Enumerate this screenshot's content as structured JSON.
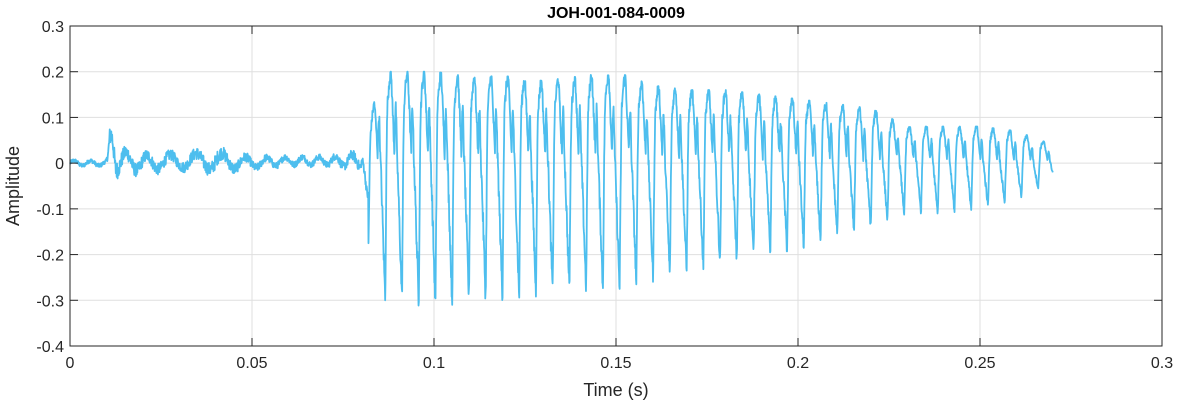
{
  "chart_data": {
    "type": "line",
    "title": "JOH-001-084-0009",
    "xlabel": "Time (s)",
    "ylabel": "Amplitude",
    "xlim": [
      0,
      0.3
    ],
    "ylim": [
      -0.4,
      0.3
    ],
    "xticks": [
      0,
      0.05,
      0.1,
      0.15,
      0.2,
      0.25,
      0.3
    ],
    "xtick_labels": [
      "0",
      "0.05",
      "0.1",
      "0.15",
      "0.2",
      "0.25",
      "0.3"
    ],
    "yticks": [
      -0.4,
      -0.3,
      -0.2,
      -0.1,
      0,
      0.1,
      0.2,
      0.3
    ],
    "ytick_labels": [
      "-0.4",
      "-0.3",
      "-0.2",
      "-0.1",
      "0",
      "0.1",
      "0.2",
      "0.3"
    ],
    "grid": true,
    "series": [
      {
        "color": "#4DBEEE",
        "x_start": 0,
        "x_end": 0.27,
        "voiced_onset": 0.08,
        "envelope": {
          "t": [
            0.082,
            0.086,
            0.09,
            0.1,
            0.11,
            0.12,
            0.13,
            0.14,
            0.15,
            0.16,
            0.17,
            0.18,
            0.19,
            0.2,
            0.21,
            0.22,
            0.23,
            0.24,
            0.25,
            0.26,
            0.27
          ],
          "max": [
            0.09,
            0.2,
            0.2,
            0.2,
            0.19,
            0.19,
            0.18,
            0.19,
            0.2,
            0.17,
            0.16,
            0.16,
            0.15,
            0.14,
            0.13,
            0.12,
            0.08,
            0.08,
            0.08,
            0.07,
            0.04
          ],
          "min": [
            -0.18,
            -0.3,
            -0.3,
            -0.32,
            -0.3,
            -0.3,
            -0.29,
            -0.28,
            -0.28,
            -0.26,
            -0.24,
            -0.22,
            -0.2,
            -0.19,
            -0.16,
            -0.14,
            -0.11,
            -0.11,
            -0.1,
            -0.08,
            -0.04
          ]
        },
        "pre_onset_noise": {
          "t": [
            0,
            0.01,
            0.011,
            0.015,
            0.02,
            0.03,
            0.04,
            0.05,
            0.06,
            0.07,
            0.078
          ],
          "max": [
            0.01,
            0.01,
            0.06,
            0.04,
            0.03,
            0.03,
            0.04,
            0.02,
            0.02,
            0.02,
            0.03
          ],
          "min": [
            -0.01,
            -0.01,
            -0.04,
            -0.03,
            -0.03,
            -0.02,
            -0.03,
            -0.02,
            -0.01,
            -0.01,
            -0.02
          ]
        }
      }
    ]
  }
}
